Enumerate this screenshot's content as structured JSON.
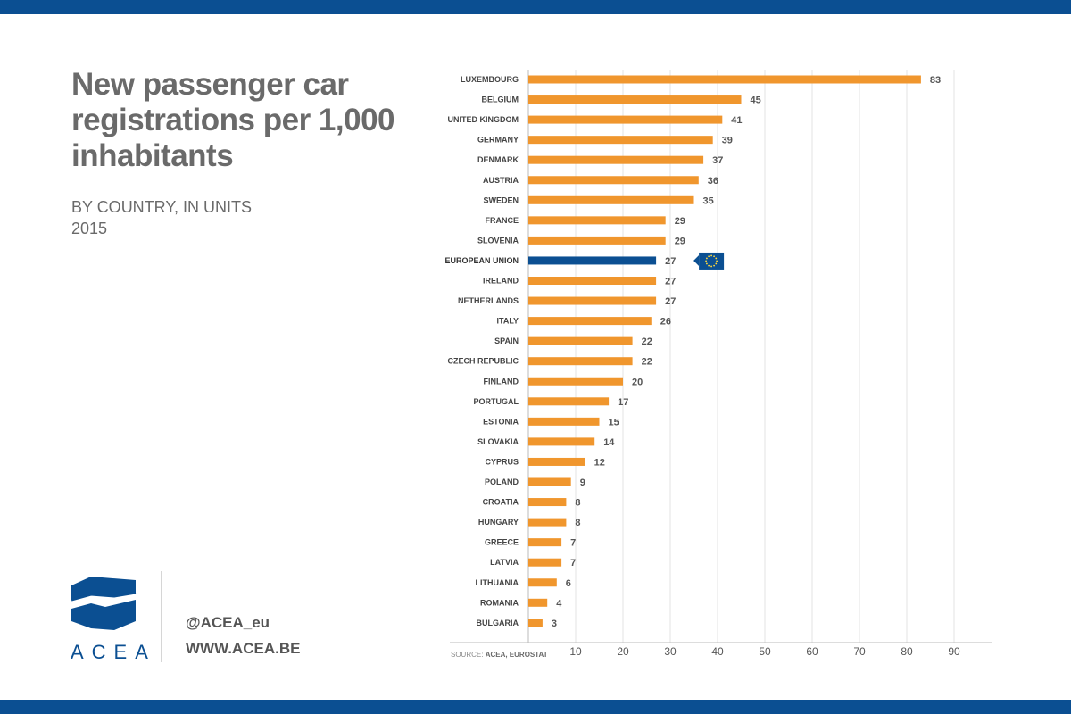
{
  "header": {
    "title": "New passenger car registrations per 1,000 inhabitants",
    "subtitle_line1": "BY COUNTRY, IN UNITS",
    "subtitle_line2": "2015"
  },
  "footer": {
    "logo_text": "ACEA",
    "handle": "@ACEA_eu",
    "website": "WWW.ACEA.BE",
    "source_label": "SOURCE:",
    "source_value": "ACEA, EUROSTAT"
  },
  "colors": {
    "bar": "#f0962d",
    "highlight_bar": "#0b4f92",
    "brand": "#0b4f92",
    "eu_star": "#ffd93d"
  },
  "chart_data": {
    "type": "bar",
    "orientation": "horizontal",
    "categories": [
      "LUXEMBOURG",
      "BELGIUM",
      "UNITED KINGDOM",
      "GERMANY",
      "DENMARK",
      "AUSTRIA",
      "SWEDEN",
      "FRANCE",
      "SLOVENIA",
      "EUROPEAN UNION",
      "IRELAND",
      "NETHERLANDS",
      "ITALY",
      "SPAIN",
      "CZECH REPUBLIC",
      "FINLAND",
      "PORTUGAL",
      "ESTONIA",
      "SLOVAKIA",
      "CYPRUS",
      "POLAND",
      "CROATIA",
      "HUNGARY",
      "GREECE",
      "LATVIA",
      "LITHUANIA",
      "ROMANIA",
      "BULGARIA"
    ],
    "values": [
      83,
      45,
      41,
      39,
      37,
      36,
      35,
      29,
      29,
      27,
      27,
      27,
      26,
      22,
      22,
      20,
      17,
      15,
      14,
      12,
      9,
      8,
      8,
      7,
      7,
      6,
      4,
      3
    ],
    "highlight": "EUROPEAN UNION",
    "xticks": [
      10,
      20,
      30,
      40,
      50,
      60,
      70,
      80,
      90
    ],
    "xlim": [
      0,
      100
    ],
    "grid": true,
    "title": "",
    "xlabel": "",
    "ylabel": ""
  }
}
